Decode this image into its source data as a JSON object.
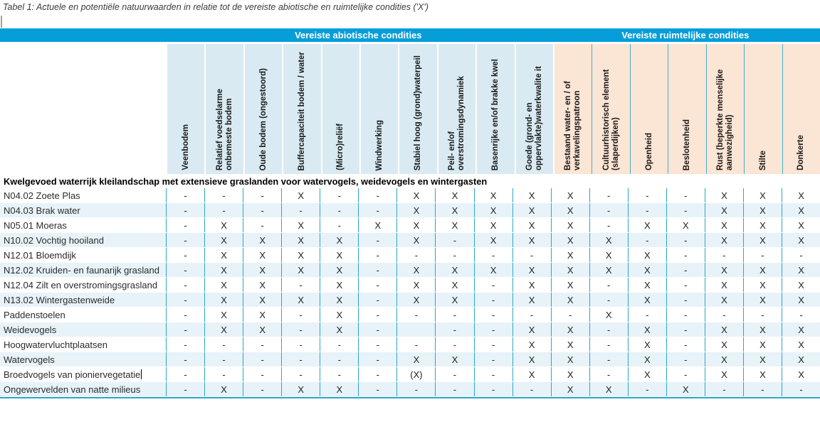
{
  "title": "Tabel 1: Actuele en potentiële natuurwaarden in relatie tot de vereiste abiotische en ruimtelijke condities ('X')",
  "colors": {
    "band": "#069ed8",
    "abiotic_header": "#d9eaf2",
    "spatial_header": "#fbe5d4",
    "divider": "#2ba6c6",
    "row_stripe": "#e8f3f9"
  },
  "header": {
    "groups": [
      {
        "label": "Vereiste abiotische condities",
        "span": 10
      },
      {
        "label": "Vereiste ruimtelijke condities",
        "span": 7
      }
    ]
  },
  "table": {
    "section_header": "Kwelgevoed waterrijk kleilandschap met extensieve graslanden voor watervogels, weidevogels en wintergasten",
    "columns": [
      {
        "label": "Veenbodem",
        "group": "abiotic"
      },
      {
        "label": "Relatief voedselarme onbemeste bodem",
        "group": "abiotic"
      },
      {
        "label": "Oude bodem (ongestoord)",
        "group": "abiotic"
      },
      {
        "label": "Buffercapaciteit bodem / water",
        "group": "abiotic"
      },
      {
        "label": "(Micro)reliëf",
        "group": "abiotic"
      },
      {
        "label": "Windwerking",
        "group": "abiotic"
      },
      {
        "label": "Stabiel hoog (grond)waterpeil",
        "group": "abiotic"
      },
      {
        "label": "Peil- en/of overstromingsdynamiek",
        "group": "abiotic"
      },
      {
        "label": "Basenrijke en/of brakke kwel",
        "group": "abiotic"
      },
      {
        "label": "Goede (grond- en oppervlakte)waterkwalite it",
        "group": "abiotic"
      },
      {
        "label": "Bestaand water- en / of verkavelingspatroon",
        "group": "spatial"
      },
      {
        "label": "Cultuurhistorisch element (slaperdijken)",
        "group": "spatial"
      },
      {
        "label": "Openheid",
        "group": "spatial"
      },
      {
        "label": "Beslotenheid",
        "group": "spatial"
      },
      {
        "label": "Rust (beperkte menselijke aanwezigheid)",
        "group": "spatial"
      },
      {
        "label": "Stilte",
        "group": "spatial"
      },
      {
        "label": "Donkerte",
        "group": "spatial"
      }
    ],
    "rows": [
      {
        "label": "N04.02 Zoete Plas",
        "values": [
          "-",
          "-",
          "-",
          "X",
          "-",
          "-",
          "X",
          "X",
          "X",
          "X",
          "X",
          "-",
          "-",
          "-",
          "X",
          "X",
          "X"
        ]
      },
      {
        "label": "N04.03 Brak water",
        "values": [
          "-",
          "-",
          "-",
          "-",
          "-",
          "-",
          "X",
          "X",
          "X",
          "X",
          "X",
          "-",
          "-",
          "-",
          "X",
          "X",
          "X"
        ]
      },
      {
        "label": "N05.01 Moeras",
        "values": [
          "-",
          "X",
          "-",
          "X",
          "-",
          "X",
          "X",
          "X",
          "X",
          "X",
          "X",
          "-",
          "X",
          "X",
          "X",
          "X",
          "X"
        ]
      },
      {
        "label": "N10.02 Vochtig hooiland",
        "values": [
          "-",
          "X",
          "X",
          "X",
          "X",
          "-",
          "X",
          "-",
          "X",
          "X",
          "X",
          "X",
          "-",
          "-",
          "X",
          "X",
          "X"
        ]
      },
      {
        "label": "N12.01 Bloemdijk",
        "values": [
          "-",
          "X",
          "X",
          "X",
          "X",
          "-",
          "-",
          "-",
          "-",
          "-",
          "X",
          "X",
          "X",
          "-",
          "-",
          "-",
          "-"
        ]
      },
      {
        "label": "N12.02 Kruiden- en faunarijk grasland",
        "values": [
          "-",
          "X",
          "X",
          "X",
          "X",
          "-",
          "X",
          "X",
          "X",
          "X",
          "X",
          "X",
          "X",
          "-",
          "X",
          "X",
          "X"
        ]
      },
      {
        "label": "N12.04 Zilt en overstromingsgrasland",
        "values": [
          "-",
          "X",
          "X",
          "-",
          "X",
          "-",
          "X",
          "X",
          "-",
          "X",
          "X",
          "-",
          "X",
          "-",
          "X",
          "X",
          "X"
        ]
      },
      {
        "label": "N13.02 Wintergastenweide",
        "values": [
          "-",
          "X",
          "X",
          "X",
          "X",
          "-",
          "X",
          "X",
          "-",
          "X",
          "X",
          "-",
          "X",
          "-",
          "X",
          "X",
          "X"
        ]
      },
      {
        "label": "Paddenstoelen",
        "values": [
          "-",
          "X",
          "X",
          "-",
          "X",
          "-",
          "-",
          "-",
          "-",
          "-",
          "-",
          "X",
          "-",
          "-",
          "-",
          "-",
          "-"
        ]
      },
      {
        "label": "Weidevogels",
        "values": [
          "-",
          "X",
          "X",
          "-",
          "X",
          "-",
          "",
          "-",
          "-",
          "X",
          "X",
          "-",
          "X",
          "-",
          "X",
          "X",
          "X"
        ]
      },
      {
        "label": "Hoogwatervluchtplaatsen",
        "values": [
          "-",
          "-",
          "-",
          "-",
          "-",
          "-",
          "-",
          "-",
          "-",
          "X",
          "X",
          "-",
          "X",
          "-",
          "X",
          "X",
          "X"
        ]
      },
      {
        "label": "Watervogels",
        "values": [
          "-",
          "-",
          "-",
          "-",
          "-",
          "-",
          "X",
          "X",
          "-",
          "X",
          "X",
          "-",
          "X",
          "-",
          "X",
          "X",
          "X"
        ]
      },
      {
        "label": "Broedvogels van pioniervegetatie",
        "caret": true,
        "values": [
          "-",
          "-",
          "-",
          "-",
          "-",
          "-",
          "(X)",
          "-",
          "-",
          "X",
          "X",
          "-",
          "X",
          "-",
          "X",
          "X",
          "X"
        ]
      },
      {
        "label": "Ongewervelden van natte milieus",
        "values": [
          "-",
          "X",
          "-",
          "X",
          "X",
          "-",
          "-",
          "-",
          "-",
          "-",
          "X",
          "X",
          "-",
          "X",
          "-",
          "-",
          "-"
        ]
      }
    ]
  }
}
